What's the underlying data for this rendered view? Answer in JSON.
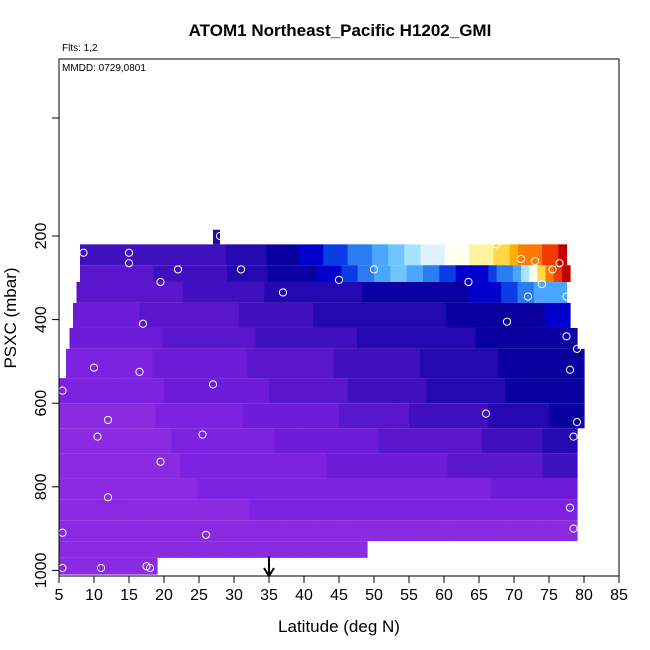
{
  "chart_data": {
    "type": "heatmap",
    "title": "ATOM1 Northeast_Pacific H1202_GMI",
    "subtitle_flights": "Flts: 1,2",
    "annotation_dates": "MMDD: 0729,0801",
    "xlabel": "Latitude (deg N)",
    "ylabel": "PSXC (mbar)",
    "xlim": [
      5,
      85
    ],
    "ylim": [
      1000,
      0
    ],
    "x_ticks": [
      "5",
      "10",
      "15",
      "20",
      "25",
      "30",
      "35",
      "40",
      "45",
      "50",
      "55",
      "60",
      "65",
      "70",
      "75",
      "80",
      "85"
    ],
    "y_ticks": [
      "200",
      "400",
      "600",
      "800",
      "1000"
    ],
    "grid": false,
    "marker_latitude": 35,
    "color_scale": [
      "#8a2be2",
      "#7d22e0",
      "#6e1cd9",
      "#5a16cc",
      "#4010bf",
      "#2408b0",
      "#0a00a0",
      "#0000cc",
      "#0a3de6",
      "#2a7cf0",
      "#4aa6ff",
      "#6fc6ff",
      "#a7e3ff",
      "#dff2ff",
      "#fffff0",
      "#fff2a0",
      "#ffd84a",
      "#ffb000",
      "#ff7a00",
      "#f03a00",
      "#c00000"
    ],
    "bands": [
      {
        "p_top": 220,
        "p_bot": 270,
        "x_start": 8,
        "x_end": 77.5,
        "values": [
          4,
          4,
          4,
          4,
          4,
          4,
          4,
          4,
          4,
          4,
          4,
          4,
          4,
          4,
          4,
          4,
          4,
          4,
          5,
          5,
          5,
          5,
          5,
          6,
          6,
          6,
          6,
          7,
          7,
          7,
          8,
          8,
          8,
          9,
          9,
          9,
          10,
          10,
          11,
          11,
          12,
          12,
          13,
          13,
          13,
          14,
          14,
          14,
          15,
          15,
          15,
          16,
          16,
          17,
          18,
          18,
          18,
          19,
          19,
          20
        ]
      },
      {
        "p_top": 270,
        "p_bot": 310,
        "x_start": 8,
        "x_end": 78,
        "values": [
          3,
          3,
          3,
          3,
          3,
          3,
          3,
          3,
          3,
          4,
          4,
          4,
          4,
          4,
          4,
          4,
          4,
          4,
          5,
          5,
          5,
          5,
          5,
          6,
          6,
          6,
          6,
          6,
          6,
          7,
          7,
          7,
          8,
          8,
          9,
          9,
          10,
          10,
          11,
          11,
          10,
          10,
          9,
          9,
          8,
          8,
          7,
          7,
          7,
          7,
          8,
          9,
          9,
          10,
          12,
          14,
          16,
          18,
          19,
          20
        ]
      },
      {
        "p_top": 310,
        "p_bot": 360,
        "x_start": 7.5,
        "x_end": 77.5,
        "values": [
          3,
          3,
          3,
          3,
          3,
          3,
          3,
          3,
          3,
          3,
          3,
          3,
          3,
          4,
          4,
          4,
          4,
          4,
          4,
          4,
          4,
          4,
          4,
          5,
          5,
          5,
          5,
          5,
          5,
          5,
          5,
          5,
          5,
          5,
          5,
          6,
          6,
          6,
          6,
          6,
          6,
          6,
          6,
          6,
          6,
          6,
          6,
          6,
          7,
          7,
          7,
          7,
          8,
          8,
          9,
          9,
          10,
          10,
          10,
          10
        ]
      },
      {
        "p_top": 360,
        "p_bot": 420,
        "x_start": 7,
        "x_end": 78,
        "values": [
          2,
          2,
          2,
          2,
          2,
          2,
          2,
          2,
          3,
          3,
          3,
          3,
          3,
          3,
          3,
          3,
          3,
          3,
          3,
          3,
          4,
          4,
          4,
          4,
          4,
          4,
          4,
          4,
          4,
          5,
          5,
          5,
          5,
          5,
          5,
          5,
          5,
          5,
          5,
          5,
          5,
          5,
          5,
          5,
          5,
          6,
          6,
          6,
          6,
          6,
          6,
          6,
          6,
          6,
          6,
          6,
          6,
          7,
          7,
          7
        ]
      },
      {
        "p_top": 420,
        "p_bot": 470,
        "x_start": 6.5,
        "x_end": 79,
        "values": [
          2,
          2,
          2,
          2,
          2,
          2,
          2,
          2,
          2,
          2,
          2,
          3,
          3,
          3,
          3,
          3,
          3,
          3,
          3,
          3,
          3,
          3,
          4,
          4,
          4,
          4,
          4,
          4,
          4,
          4,
          4,
          4,
          4,
          4,
          5,
          5,
          5,
          5,
          5,
          5,
          5,
          5,
          5,
          5,
          5,
          5,
          5,
          5,
          6,
          6,
          6,
          6,
          6,
          6,
          6,
          6,
          6,
          6,
          6,
          6
        ]
      },
      {
        "p_top": 470,
        "p_bot": 540,
        "x_start": 6,
        "x_end": 80,
        "values": [
          1,
          1,
          1,
          1,
          1,
          1,
          1,
          1,
          1,
          1,
          2,
          2,
          2,
          2,
          2,
          2,
          2,
          2,
          2,
          2,
          2,
          3,
          3,
          3,
          3,
          3,
          3,
          3,
          3,
          3,
          3,
          4,
          4,
          4,
          4,
          4,
          4,
          4,
          4,
          4,
          4,
          5,
          5,
          5,
          5,
          5,
          5,
          5,
          5,
          5,
          6,
          6,
          6,
          6,
          6,
          6,
          6,
          6,
          6,
          6
        ]
      },
      {
        "p_top": 540,
        "p_bot": 600,
        "x_start": 5,
        "x_end": 80,
        "values": [
          1,
          1,
          1,
          1,
          1,
          1,
          1,
          1,
          1,
          1,
          1,
          1,
          2,
          2,
          2,
          2,
          2,
          2,
          2,
          2,
          2,
          2,
          2,
          2,
          3,
          3,
          3,
          3,
          3,
          3,
          3,
          3,
          3,
          4,
          4,
          4,
          4,
          4,
          4,
          4,
          4,
          4,
          5,
          5,
          5,
          5,
          5,
          5,
          5,
          5,
          5,
          6,
          6,
          6,
          6,
          6,
          6,
          6,
          6,
          6
        ]
      },
      {
        "p_top": 600,
        "p_bot": 660,
        "x_start": 5,
        "x_end": 80,
        "values": [
          0,
          0,
          0,
          0,
          0,
          0,
          0,
          0,
          0,
          0,
          0,
          1,
          1,
          1,
          1,
          1,
          1,
          1,
          1,
          1,
          1,
          2,
          2,
          2,
          2,
          2,
          2,
          2,
          2,
          2,
          2,
          2,
          3,
          3,
          3,
          3,
          3,
          3,
          3,
          3,
          4,
          4,
          4,
          4,
          4,
          4,
          4,
          4,
          4,
          5,
          5,
          5,
          5,
          5,
          5,
          5,
          6,
          6,
          6,
          6
        ]
      },
      {
        "p_top": 660,
        "p_bot": 720,
        "x_start": 5,
        "x_end": 79,
        "values": [
          0,
          0,
          0,
          0,
          0,
          0,
          0,
          0,
          0,
          0,
          0,
          0,
          0,
          1,
          1,
          1,
          1,
          1,
          1,
          1,
          1,
          1,
          1,
          1,
          1,
          2,
          2,
          2,
          2,
          2,
          2,
          2,
          2,
          2,
          2,
          2,
          2,
          3,
          3,
          3,
          3,
          3,
          3,
          3,
          3,
          3,
          3,
          3,
          3,
          4,
          4,
          4,
          4,
          4,
          4,
          4,
          5,
          5,
          5,
          5
        ]
      },
      {
        "p_top": 720,
        "p_bot": 780,
        "x_start": 5,
        "x_end": 79,
        "values": [
          0,
          0,
          0,
          0,
          0,
          0,
          0,
          0,
          0,
          0,
          0,
          0,
          0,
          0,
          1,
          1,
          1,
          1,
          1,
          1,
          1,
          1,
          1,
          1,
          1,
          1,
          1,
          1,
          1,
          1,
          1,
          2,
          2,
          2,
          2,
          2,
          2,
          2,
          2,
          2,
          2,
          2,
          2,
          2,
          2,
          3,
          3,
          3,
          3,
          3,
          3,
          3,
          3,
          3,
          3,
          3,
          4,
          4,
          4,
          4
        ]
      },
      {
        "p_top": 780,
        "p_bot": 830,
        "x_start": 5,
        "x_end": 79,
        "values": [
          0,
          0,
          0,
          0,
          0,
          0,
          0,
          0,
          0,
          0,
          0,
          0,
          0,
          0,
          0,
          0,
          1,
          1,
          1,
          1,
          1,
          1,
          1,
          1,
          1,
          1,
          1,
          1,
          1,
          1,
          1,
          1,
          1,
          1,
          1,
          1,
          1,
          1,
          1,
          1,
          1,
          1,
          1,
          1,
          1,
          1,
          1,
          1,
          1,
          1,
          2,
          2,
          2,
          2,
          2,
          2,
          2,
          2,
          2,
          2
        ]
      },
      {
        "p_top": 830,
        "p_bot": 880,
        "x_start": 5,
        "x_end": 79,
        "values": [
          0,
          0,
          0,
          0,
          0,
          0,
          0,
          0,
          0,
          0,
          0,
          0,
          0,
          0,
          0,
          0,
          0,
          0,
          0,
          0,
          0,
          0,
          1,
          1,
          1,
          1,
          1,
          1,
          1,
          1,
          1,
          1,
          1,
          1,
          1,
          1,
          1,
          1,
          1,
          1,
          1,
          1,
          1,
          1,
          1,
          1,
          1,
          1,
          1,
          1,
          1,
          1,
          1,
          1,
          1,
          1,
          1,
          1,
          1,
          1
        ]
      },
      {
        "p_top": 880,
        "p_bot": 930,
        "x_start": 5,
        "x_end": 79,
        "values": [
          0,
          0,
          0,
          0,
          0,
          0,
          0,
          0,
          0,
          0,
          0,
          0,
          0,
          0,
          0,
          0,
          0,
          0,
          0,
          0,
          0,
          0,
          0,
          0,
          0,
          0,
          0,
          0,
          0,
          0,
          0,
          0,
          0,
          0,
          0,
          0,
          0,
          0,
          0,
          0,
          0,
          0,
          0,
          0,
          0,
          0,
          0,
          0,
          0,
          0,
          0,
          0,
          0,
          0,
          0,
          0,
          0,
          0,
          0,
          0
        ]
      },
      {
        "p_top": 930,
        "p_bot": 970,
        "x_start": 5,
        "x_end": 49,
        "values": [
          0,
          0,
          0,
          0,
          0,
          0,
          0,
          0,
          0,
          0,
          0,
          0,
          0,
          0,
          0,
          0,
          0,
          0,
          0,
          0,
          0,
          0,
          0,
          0,
          0,
          0,
          0,
          0,
          0,
          0,
          0,
          0,
          0,
          0,
          0,
          0,
          0,
          0,
          0,
          0,
          0,
          0,
          0,
          0,
          0,
          0,
          0,
          0,
          0,
          0,
          0,
          0,
          0,
          0,
          0,
          0,
          0,
          0,
          0,
          0
        ]
      },
      {
        "p_top": 970,
        "p_bot": 1010,
        "x_start": 5,
        "x_end": 19,
        "values": [
          0,
          0,
          0,
          0,
          0,
          0,
          0,
          0,
          0,
          0,
          0,
          0,
          0,
          0,
          0,
          0,
          0,
          0,
          0,
          0,
          0,
          0,
          0,
          0,
          0,
          0,
          0,
          0,
          0,
          0,
          0,
          0,
          0,
          0,
          0,
          0,
          0,
          0,
          0,
          0,
          0,
          0,
          0,
          0,
          0,
          0,
          0,
          0,
          0,
          0,
          0,
          0,
          0,
          0,
          0,
          0,
          0,
          0,
          0,
          0
        ]
      }
    ],
    "extra_cells": [
      {
        "x0": 27,
        "x1": 28,
        "p_top": 185,
        "p_bot": 220,
        "value": 5
      }
    ],
    "points": [
      {
        "lat": 5.5,
        "p": 1000
      },
      {
        "lat": 18,
        "p": 1000
      },
      {
        "lat": 17.5,
        "p": 990
      },
      {
        "lat": 11,
        "p": 995
      },
      {
        "lat": 5.5,
        "p": 910
      },
      {
        "lat": 26,
        "p": 915
      },
      {
        "lat": 12,
        "p": 825
      },
      {
        "lat": 19.5,
        "p": 740
      },
      {
        "lat": 10.5,
        "p": 680
      },
      {
        "lat": 25.5,
        "p": 675
      },
      {
        "lat": 12,
        "p": 640
      },
      {
        "lat": 5.5,
        "p": 570
      },
      {
        "lat": 27,
        "p": 555
      },
      {
        "lat": 10,
        "p": 515
      },
      {
        "lat": 16.5,
        "p": 525
      },
      {
        "lat": 17,
        "p": 410
      },
      {
        "lat": 19.5,
        "p": 310
      },
      {
        "lat": 22,
        "p": 280
      },
      {
        "lat": 15,
        "p": 265
      },
      {
        "lat": 15,
        "p": 240
      },
      {
        "lat": 8.5,
        "p": 240
      },
      {
        "lat": 28,
        "p": 200
      },
      {
        "lat": 31,
        "p": 280
      },
      {
        "lat": 37,
        "p": 335
      },
      {
        "lat": 45,
        "p": 305
      },
      {
        "lat": 50,
        "p": 280
      },
      {
        "lat": 63.5,
        "p": 310
      },
      {
        "lat": 67.5,
        "p": 220
      },
      {
        "lat": 71,
        "p": 255
      },
      {
        "lat": 72,
        "p": 345
      },
      {
        "lat": 69,
        "p": 405
      },
      {
        "lat": 66,
        "p": 625
      },
      {
        "lat": 73,
        "p": 260
      },
      {
        "lat": 74,
        "p": 315
      },
      {
        "lat": 75.5,
        "p": 280
      },
      {
        "lat": 76.5,
        "p": 265
      },
      {
        "lat": 77.5,
        "p": 345
      },
      {
        "lat": 77.5,
        "p": 440
      },
      {
        "lat": 78,
        "p": 520
      },
      {
        "lat": 79,
        "p": 470
      },
      {
        "lat": 79,
        "p": 645
      },
      {
        "lat": 78.5,
        "p": 680
      },
      {
        "lat": 78,
        "p": 850
      },
      {
        "lat": 78.5,
        "p": 900
      }
    ]
  }
}
